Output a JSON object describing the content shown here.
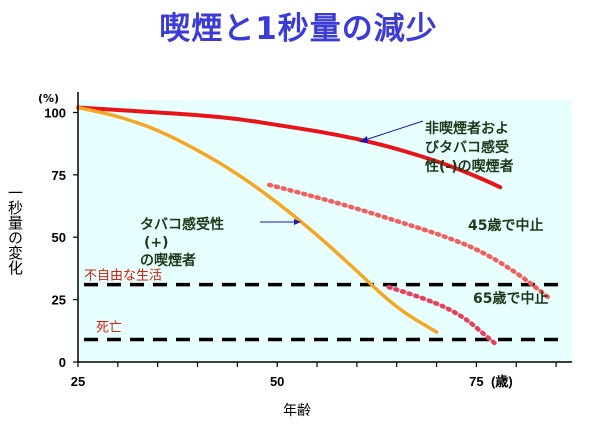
{
  "title": "喫煙と1秒量の減少",
  "chart_data": {
    "type": "line",
    "ylabel": "一秒量の変化",
    "xlabel": "年齢",
    "y_unit": "(%)",
    "x_unit": "(歳)",
    "xlim": [
      25,
      87
    ],
    "ylim": [
      0,
      105
    ],
    "x_ticks": [
      25,
      50,
      75
    ],
    "y_ticks": [
      0,
      25,
      50,
      75,
      100
    ],
    "plot_background": "#e8ffff",
    "series": [
      {
        "name": "非喫煙者およびタバコ感受性(-)の喫煙者",
        "color": "#e8141a",
        "style": "solid",
        "x": [
          25,
          30,
          35,
          40,
          45,
          50,
          55,
          60,
          65,
          70,
          73,
          76,
          78
        ],
        "y": [
          102,
          101,
          100,
          99,
          97.5,
          95,
          92.5,
          89.5,
          85.5,
          80.5,
          77,
          73,
          70
        ]
      },
      {
        "name": "タバコ感受性(+)の喫煙者",
        "color": "#f5a623",
        "style": "solid",
        "x": [
          25,
          28,
          31,
          35,
          40,
          45,
          50,
          55,
          60,
          65,
          70
        ],
        "y": [
          102,
          100,
          97.5,
          93,
          85,
          75.5,
          64,
          51,
          36.5,
          21.5,
          12
        ]
      },
      {
        "name": "45歳で中止",
        "color": "#f06060",
        "style": "dotted",
        "x": [
          49,
          55,
          60,
          65,
          70,
          75,
          80,
          84
        ],
        "y": [
          71,
          66,
          61.5,
          56.5,
          51.5,
          45.5,
          36,
          26
        ]
      },
      {
        "name": "65歳で中止",
        "color": "#e8405a",
        "style": "dotted",
        "x": [
          64,
          67,
          70,
          72,
          74,
          76,
          77.5
        ],
        "y": [
          30,
          27,
          23.5,
          20.5,
          16.5,
          11,
          7
        ]
      }
    ],
    "reference_lines": [
      {
        "label": "不自由な生活",
        "y": 31,
        "color": "#000000",
        "style": "dashed"
      },
      {
        "label": "死亡",
        "y": 9,
        "color": "#000000",
        "style": "dashed"
      }
    ],
    "annotations": [
      {
        "lines": [
          "非喫煙者およ",
          "びタバコ感受",
          "性(-)の喫煙者"
        ]
      },
      {
        "lines": [
          "タバコ感受性",
          "(+)",
          "の喫煙者"
        ]
      },
      {
        "lines": [
          "45歳で中止"
        ]
      },
      {
        "lines": [
          "65歳で中止"
        ]
      }
    ]
  }
}
